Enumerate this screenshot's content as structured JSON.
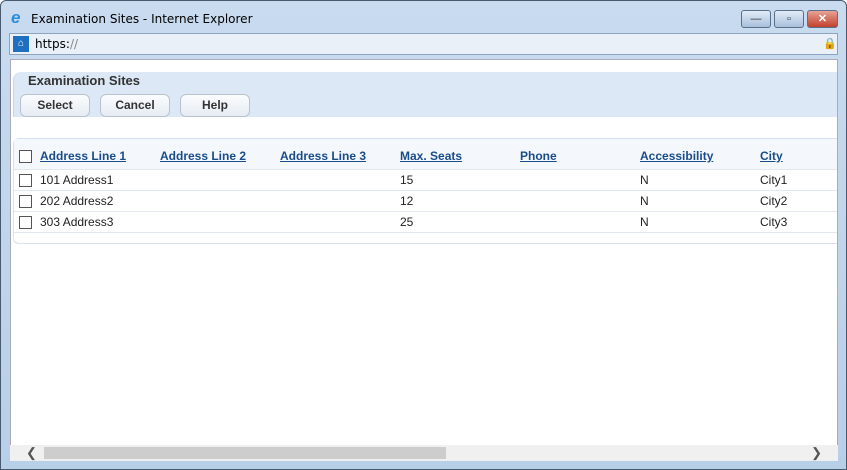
{
  "window": {
    "title": "Examination Sites - Internet Explorer",
    "minimize": "—",
    "restore": "▫",
    "close": "✕"
  },
  "address": {
    "scheme": "https:",
    "slashes": "//"
  },
  "page": {
    "title": "Examination Sites",
    "buttons": [
      "Select",
      "Cancel",
      "Help"
    ]
  },
  "table": {
    "columns": [
      "Address Line 1",
      "Address Line 2",
      "Address Line 3",
      "Max. Seats",
      "Phone",
      "Accessibility",
      "City"
    ],
    "rows": [
      [
        "101 Address1",
        "",
        "",
        "15",
        "",
        "N",
        "City1"
      ],
      [
        "202 Address2",
        "",
        "",
        "12",
        "",
        "N",
        "City2"
      ],
      [
        "303 Address3",
        "",
        "",
        "25",
        "",
        "N",
        "City3"
      ]
    ]
  },
  "scrollbar": {
    "left": "❮",
    "right": "❯"
  }
}
